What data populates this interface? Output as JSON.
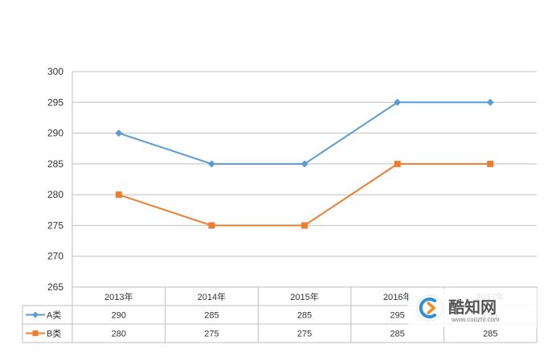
{
  "chart_data": {
    "type": "line",
    "categories": [
      "2013年",
      "2014年",
      "2015年",
      "2016年",
      "2017年"
    ],
    "series": [
      {
        "name": "A类",
        "values": [
          290,
          285,
          285,
          295,
          295
        ],
        "color": "#5B9BD5",
        "marker": "diamond"
      },
      {
        "name": "B类",
        "values": [
          280,
          275,
          275,
          285,
          285
        ],
        "color": "#ED7D31",
        "marker": "square"
      }
    ],
    "ylim": [
      265,
      300
    ],
    "yticks": [
      265,
      270,
      275,
      280,
      285,
      290,
      295,
      300
    ],
    "grid": true,
    "legend": "data-table-below",
    "title": "",
    "xlabel": "",
    "ylabel": ""
  },
  "watermark": {
    "brand": "酷知网",
    "url": "www.coozhi.com",
    "icon": "coozhi-logo-icon"
  }
}
